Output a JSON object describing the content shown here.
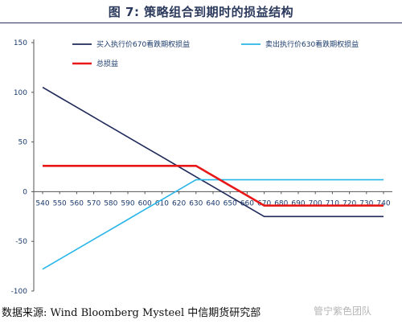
{
  "header": {
    "title": "图 7:    策略组合到期时的损益结构"
  },
  "footer": {
    "source": "数据来源:  Wind Bloomberg Mysteel  中信期货研究部",
    "watermark": "管宁紫色团队"
  },
  "chart_data": {
    "type": "line",
    "title": "图 7:    策略组合到期时的损益结构",
    "xlabel": "",
    "ylabel": "",
    "x": [
      540,
      550,
      560,
      570,
      580,
      590,
      600,
      610,
      620,
      630,
      640,
      650,
      660,
      670,
      680,
      690,
      700,
      710,
      720,
      730,
      740
    ],
    "ylim": [
      -100,
      150
    ],
    "yticks": [
      -100,
      -50,
      0,
      50,
      100,
      150
    ],
    "grid": false,
    "legend_position": "top",
    "series": [
      {
        "name": "买入执行价670看跌期权损益",
        "color": "#1f2a5a",
        "values": [
          105,
          95,
          85,
          75,
          65,
          55,
          45,
          35,
          25,
          15,
          5,
          -5,
          -15,
          -25,
          -25,
          -25,
          -25,
          -25,
          -25,
          -25,
          -25
        ]
      },
      {
        "name": "卖出执行价630看跌期权损益",
        "color": "#29b6e8",
        "values": [
          -78,
          -68,
          -58,
          -48,
          -38,
          -28,
          -18,
          -8,
          2,
          12,
          12,
          12,
          12,
          12,
          12,
          12,
          12,
          12,
          12,
          12,
          12
        ]
      },
      {
        "name": "总损益",
        "color": "#e81818",
        "values": [
          26,
          26,
          26,
          26,
          26,
          26,
          26,
          26,
          26,
          26,
          16,
          6,
          -4,
          -14,
          -14,
          -14,
          -14,
          -14,
          -14,
          -14,
          -14
        ]
      }
    ]
  }
}
